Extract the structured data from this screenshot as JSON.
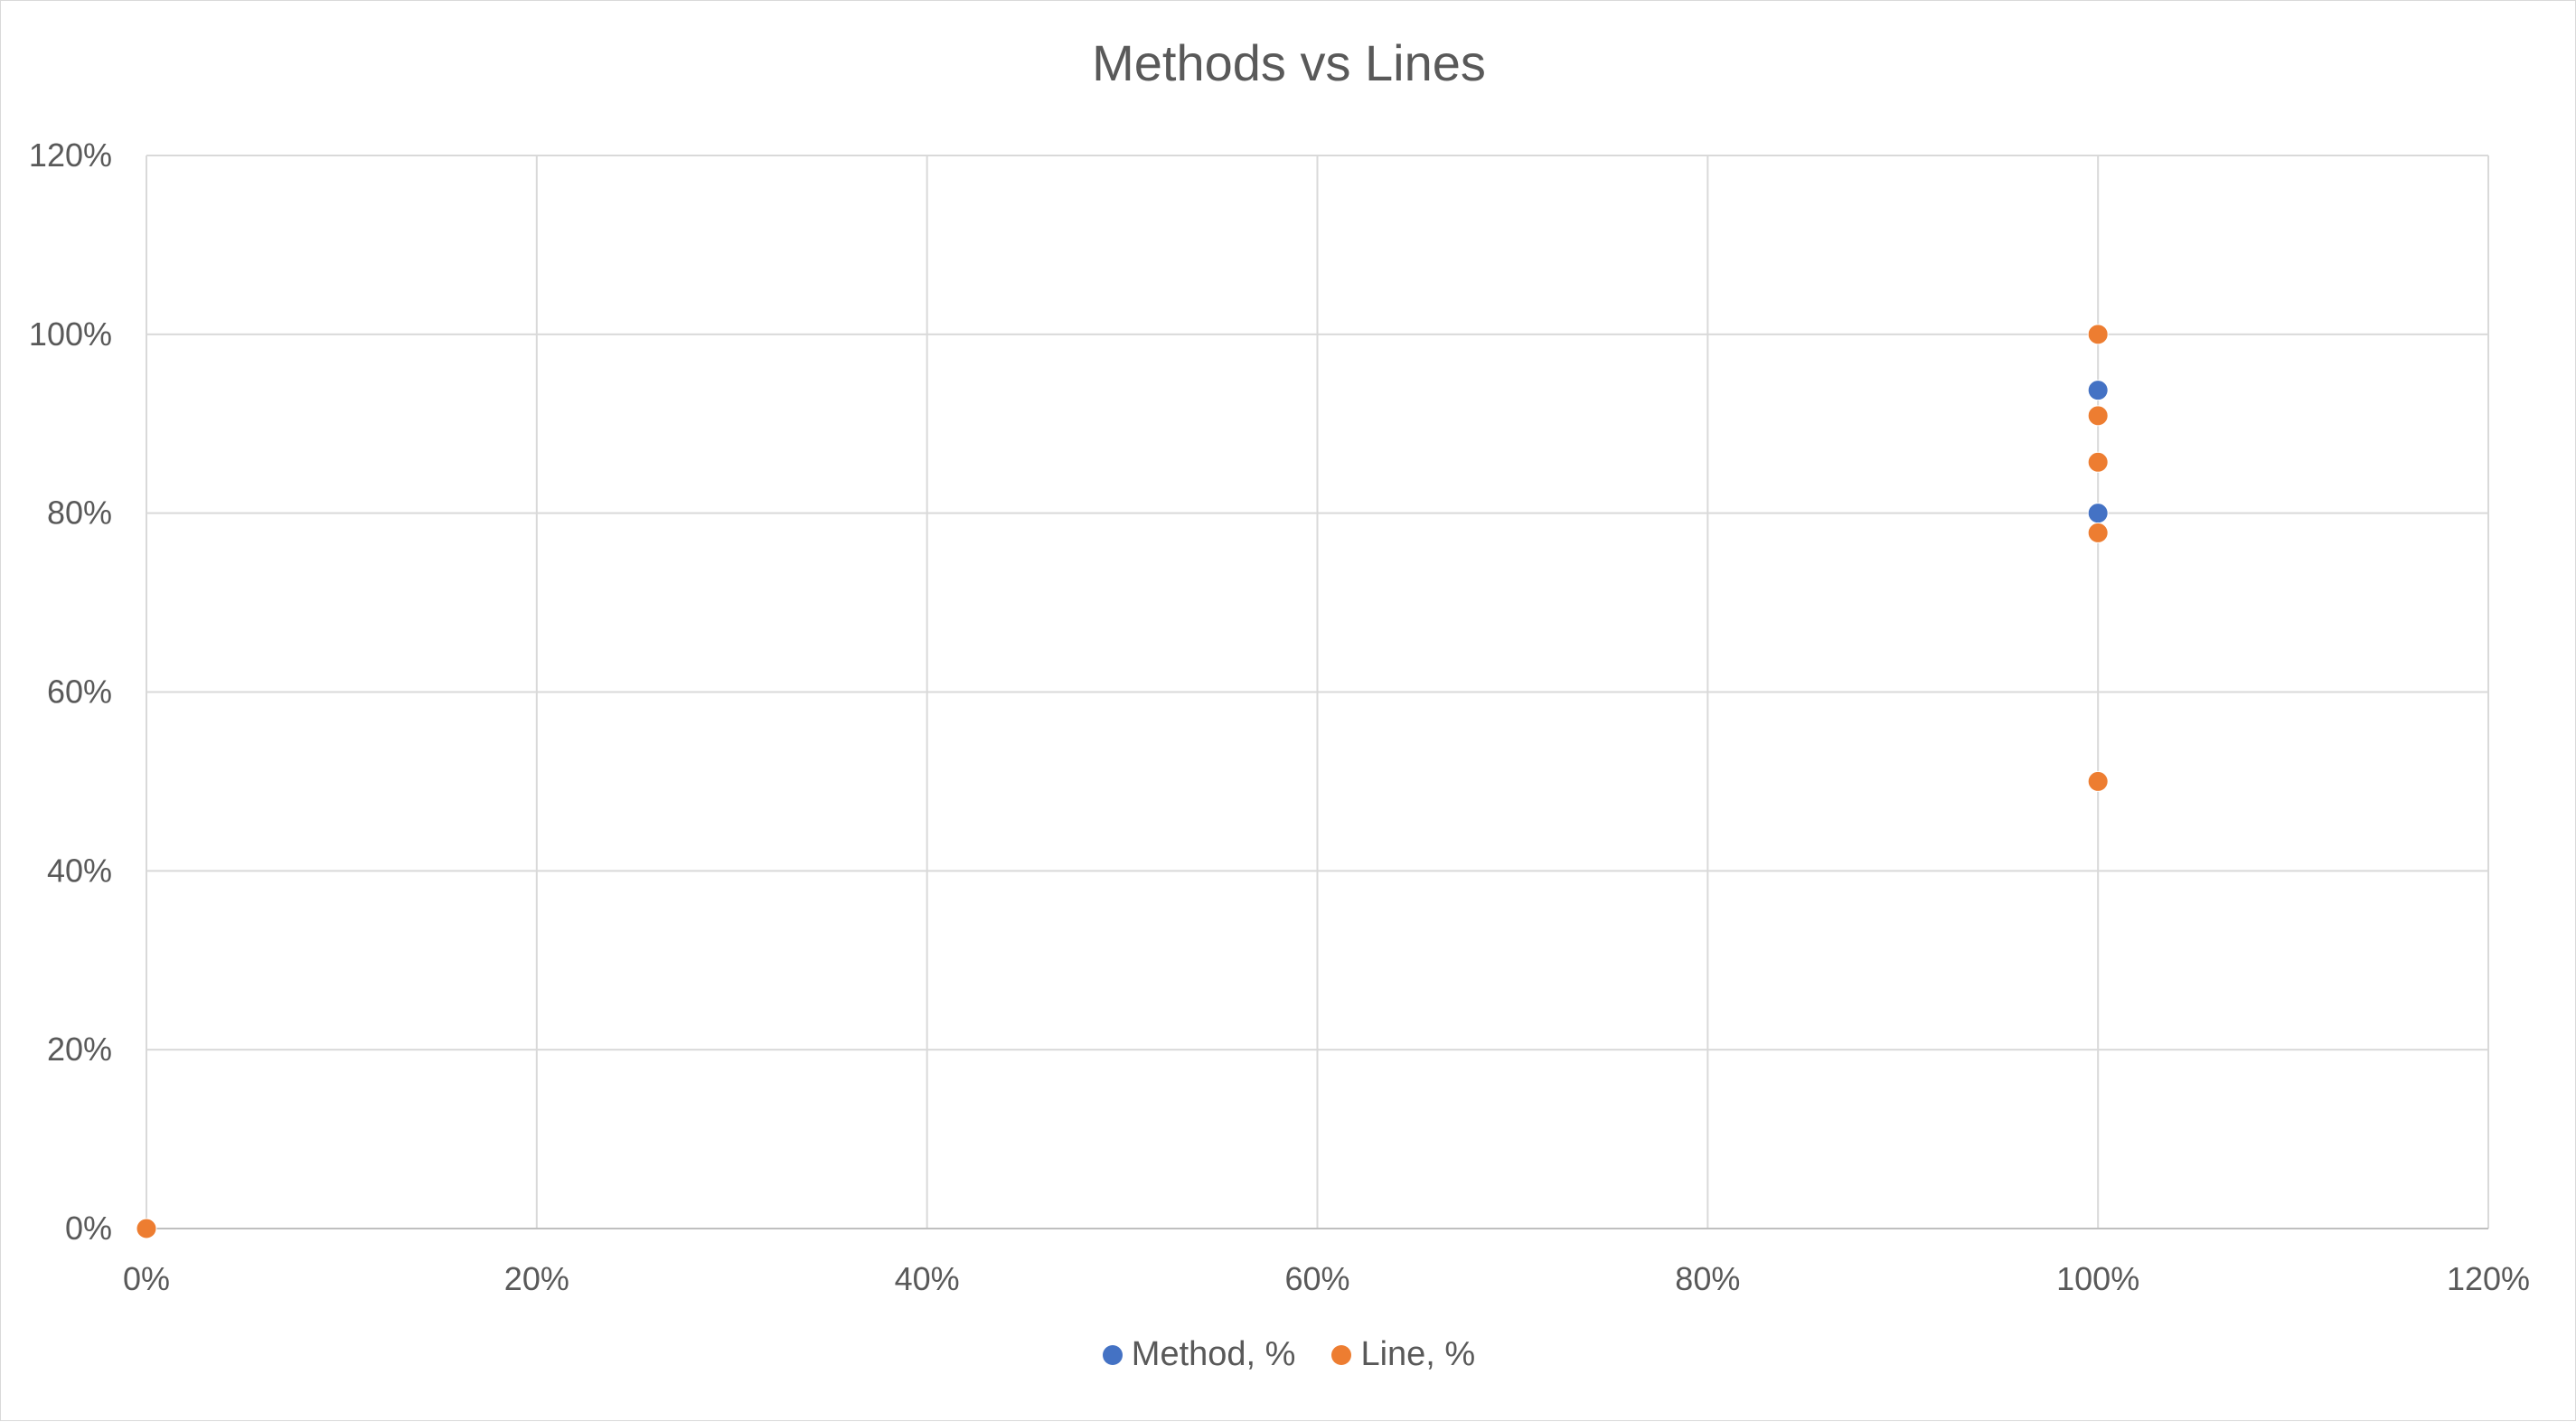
{
  "chart_data": {
    "type": "scatter",
    "title": "Methods vs Lines",
    "xlabel": "",
    "ylabel": "",
    "xlim": [
      0,
      1.2
    ],
    "ylim": [
      0,
      1.2
    ],
    "x_ticks": [
      "0%",
      "20%",
      "40%",
      "60%",
      "80%",
      "100%",
      "120%"
    ],
    "y_ticks": [
      "0%",
      "20%",
      "40%",
      "60%",
      "80%",
      "100%",
      "120%"
    ],
    "grid": true,
    "legend_position": "bottom",
    "series": [
      {
        "name": "Method, %",
        "color": "#4472c4",
        "points": [
          {
            "x": 0,
            "y": 0
          },
          {
            "x": 1.0,
            "y": 0.9375
          },
          {
            "x": 1.0,
            "y": 0.8
          }
        ]
      },
      {
        "name": "Line, %",
        "color": "#ed7d31",
        "points": [
          {
            "x": 0,
            "y": 0
          },
          {
            "x": 1.0,
            "y": 1.0
          },
          {
            "x": 1.0,
            "y": 0.909
          },
          {
            "x": 1.0,
            "y": 0.857
          },
          {
            "x": 1.0,
            "y": 0.778
          },
          {
            "x": 1.0,
            "y": 0.5
          }
        ]
      }
    ]
  }
}
